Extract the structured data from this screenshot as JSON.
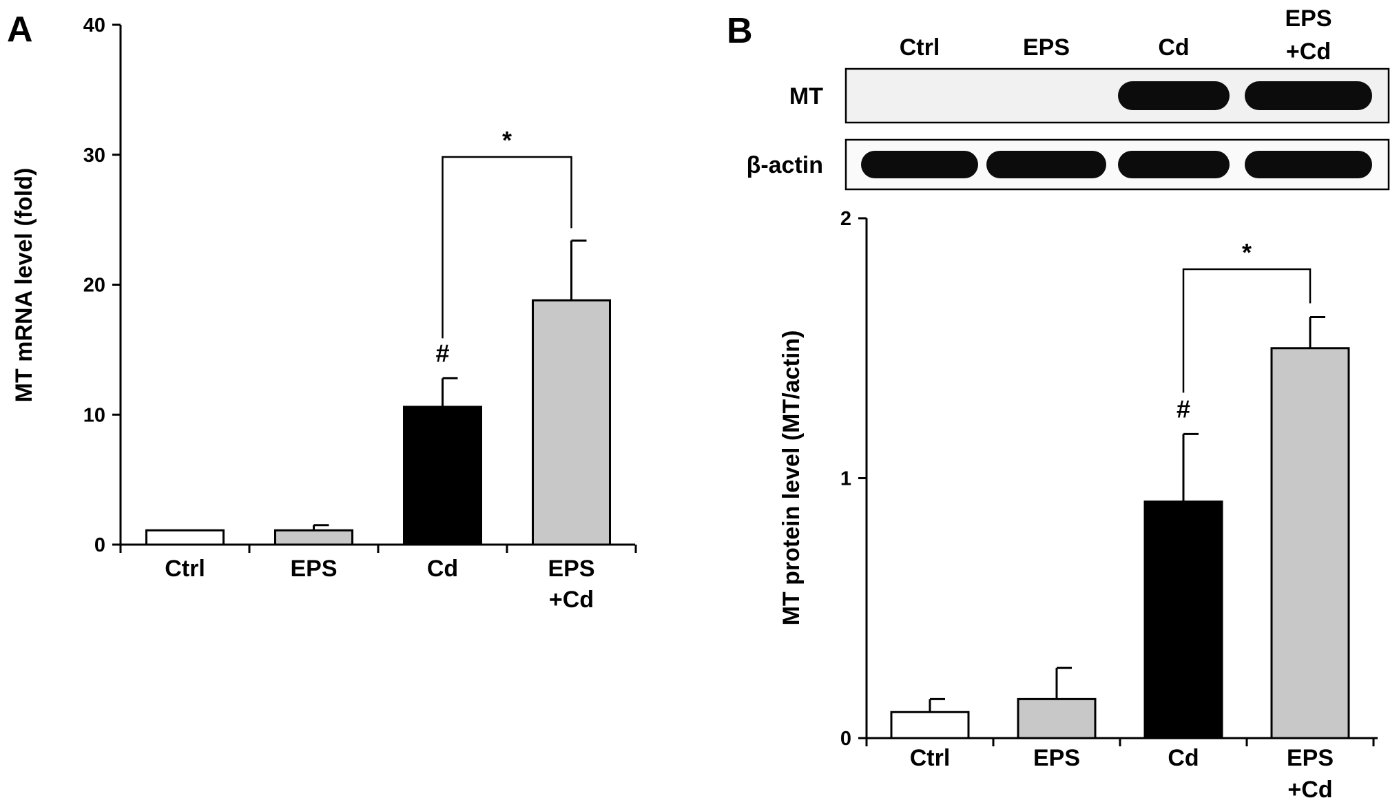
{
  "panels": [
    {
      "letter": "A",
      "chart_data": {
        "type": "bar",
        "categories": [
          [
            "Ctrl"
          ],
          [
            "EPS"
          ],
          [
            "Cd"
          ],
          [
            "EPS",
            "+Cd"
          ]
        ],
        "values": [
          1.1,
          1.1,
          10.6,
          18.8
        ],
        "errors": [
          0,
          0.4,
          2.2,
          4.6
        ],
        "fills": [
          "#ffffff",
          "#c8c8c8",
          "#000000",
          "#c8c8c8"
        ],
        "ylabel": "MT mRNA level (fold)",
        "ylim": [
          0,
          40
        ],
        "yticks": [
          "0",
          "10",
          "20",
          "30",
          "40"
        ],
        "annotations": [
          {
            "category_index": 2,
            "text": "#"
          },
          {
            "bracket": [
              2,
              3
            ],
            "text": "*"
          }
        ]
      }
    },
    {
      "letter": "B",
      "blot": {
        "lanes": [
          [
            "Ctrl"
          ],
          [
            "EPS"
          ],
          [
            "Cd"
          ],
          [
            "EPS",
            "+Cd"
          ]
        ],
        "rows": [
          {
            "label": "MT",
            "band_intensity": [
              0.0,
              0.0,
              1.0,
              1.0
            ]
          },
          {
            "label": "β-actin",
            "band_intensity": [
              1.0,
              1.0,
              1.0,
              1.0
            ]
          }
        ]
      },
      "chart_data": {
        "type": "bar",
        "categories": [
          [
            "Ctrl"
          ],
          [
            "EPS"
          ],
          [
            "Cd"
          ],
          [
            "EPS",
            "+Cd"
          ]
        ],
        "values": [
          0.1,
          0.15,
          0.91,
          1.5
        ],
        "errors": [
          0.05,
          0.12,
          0.26,
          0.12
        ],
        "fills": [
          "#ffffff",
          "#c8c8c8",
          "#000000",
          "#c8c8c8"
        ],
        "ylabel": "MT protein level (MT/actin)",
        "ylim": [
          0,
          2
        ],
        "yticks": [
          "0",
          "1",
          "2"
        ],
        "annotations": [
          {
            "category_index": 2,
            "text": "#"
          },
          {
            "bracket": [
              2,
              3
            ],
            "text": "*"
          }
        ]
      }
    }
  ]
}
